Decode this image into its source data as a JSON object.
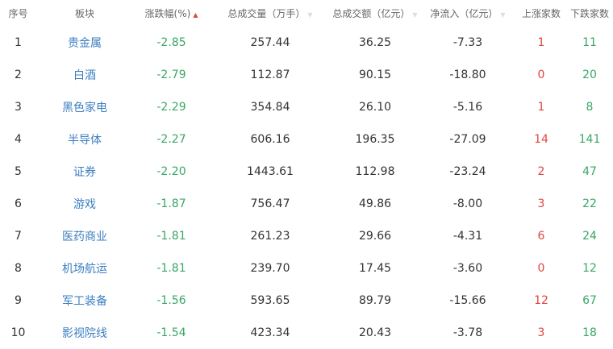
{
  "headers": [
    "序号",
    "板块",
    "涨跌幅(%)",
    "总成交量（万手）",
    "总成交额（亿元）",
    "净流入（亿元）",
    "上涨家数",
    "下跌家数"
  ],
  "sort": {
    "column": "涨跌幅(%)",
    "direction": "asc",
    "active_color": "#e0453f"
  },
  "colors": {
    "name": "#3d7fc1",
    "down": "#3aa667",
    "up": "#e0453f"
  },
  "rows": [
    [
      "1",
      "贵金属",
      "-2.85",
      "257.44",
      "36.25",
      "-7.33",
      "1",
      "11"
    ],
    [
      "2",
      "白酒",
      "-2.79",
      "112.87",
      "90.15",
      "-18.80",
      "0",
      "20"
    ],
    [
      "3",
      "黑色家电",
      "-2.29",
      "354.84",
      "26.10",
      "-5.16",
      "1",
      "8"
    ],
    [
      "4",
      "半导体",
      "-2.27",
      "606.16",
      "196.35",
      "-27.09",
      "14",
      "141"
    ],
    [
      "5",
      "证券",
      "-2.20",
      "1443.61",
      "112.98",
      "-23.24",
      "2",
      "47"
    ],
    [
      "6",
      "游戏",
      "-1.87",
      "756.47",
      "49.86",
      "-8.00",
      "3",
      "22"
    ],
    [
      "7",
      "医药商业",
      "-1.81",
      "261.23",
      "29.66",
      "-4.31",
      "6",
      "24"
    ],
    [
      "8",
      "机场航运",
      "-1.81",
      "239.70",
      "17.45",
      "-3.60",
      "0",
      "12"
    ],
    [
      "9",
      "军工装备",
      "-1.56",
      "593.65",
      "89.79",
      "-15.66",
      "12",
      "67"
    ],
    [
      "10",
      "影视院线",
      "-1.54",
      "423.34",
      "20.43",
      "-3.78",
      "3",
      "18"
    ]
  ]
}
